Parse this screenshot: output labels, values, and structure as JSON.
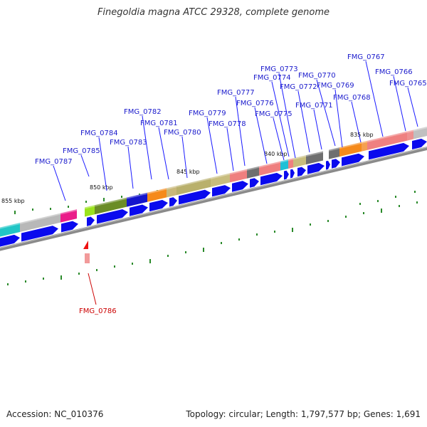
{
  "title": "Finegoldia magna ATCC 29328, complete genome",
  "footer": {
    "accession": "Accession: NC_010376",
    "summary": "Topology: circular; Length: 1,797,577 bp; Genes: 1,691"
  },
  "colors": {
    "background": "#ffffff",
    "backbone": "#888888",
    "cds": "#0000ee",
    "label_forward": "#0000cc",
    "label_reverse": "#cc0000",
    "gene_reverse": "#ee0000",
    "tick": "#227722"
  },
  "scale_labels": [
    "855 kbp",
    "850 kbp",
    "845 kbp",
    "840 kbp",
    "835 kbp"
  ],
  "genes_forward": [
    "FMG_0787",
    "FMG_0785",
    "FMG_0784",
    "FMG_0783",
    "FMG_0782",
    "FMG_0781",
    "FMG_0780",
    "FMG_0779",
    "FMG_0778",
    "FMG_0777",
    "FMG_0776",
    "FMG_0775",
    "FMG_0774",
    "FMG_0773",
    "FMG_0772",
    "FMG_0771",
    "FMG_0770",
    "FMG_0769",
    "FMG_0768",
    "FMG_0767",
    "FMG_0766",
    "FMG_0765"
  ],
  "genes_reverse": [
    "FMG_0786"
  ]
}
